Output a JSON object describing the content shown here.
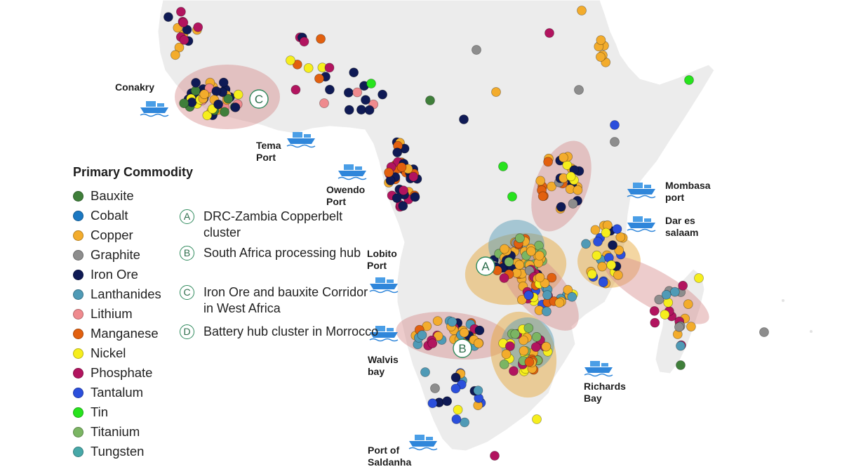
{
  "legend": {
    "title": "Primary Commodity",
    "items": [
      {
        "label": "Bauxite",
        "color": "#3f7f3a"
      },
      {
        "label": "Cobalt",
        "color": "#1b78c2"
      },
      {
        "label": "Copper",
        "color": "#f3ac2c"
      },
      {
        "label": "Graphite",
        "color": "#8d8d8d"
      },
      {
        "label": "Iron Ore",
        "color": "#0f1a55"
      },
      {
        "label": "Lanthanides",
        "color": "#4f9ab6"
      },
      {
        "label": "Lithium",
        "color": "#ef8a8e"
      },
      {
        "label": "Manganese",
        "color": "#e2600f"
      },
      {
        "label": "Nickel",
        "color": "#f6ee1d"
      },
      {
        "label": "Phosphate",
        "color": "#b2145f"
      },
      {
        "label": "Tantalum",
        "color": "#2b4fdc"
      },
      {
        "label": "Tin",
        "color": "#27e31d"
      },
      {
        "label": "Titanium",
        "color": "#7bb563"
      },
      {
        "label": "Tungsten",
        "color": "#47a8a8"
      }
    ]
  },
  "clusters": [
    {
      "letter": "A",
      "text": "DRC-Zambia Copperbelt cluster"
    },
    {
      "letter": "B",
      "text": "South Africa processing hub"
    },
    {
      "letter": "C",
      "text": "Iron Ore and bauxite Corridor in West Africa"
    },
    {
      "letter": "D",
      "text": "Battery hub cluster in Morrocco"
    }
  ],
  "map_badges": [
    "A",
    "B",
    "C"
  ],
  "ports": [
    {
      "id": "tema",
      "label": "Tema Port"
    },
    {
      "id": "owendo",
      "label": "Owendo Port"
    },
    {
      "id": "lobito",
      "label": "Lobito Port"
    },
    {
      "id": "walvis",
      "label": "Walvis bay"
    },
    {
      "id": "saldanha",
      "label": "Port of Saldanha"
    },
    {
      "id": "richards",
      "label": "Richards Bay"
    },
    {
      "id": "mombasa",
      "label": "Mombasa port"
    },
    {
      "id": "dar",
      "label": "Dar es salaam"
    }
  ],
  "cities": [
    {
      "id": "conakry",
      "label": "Conakry"
    }
  ],
  "icons": {
    "port": "cargo-ship-icon"
  }
}
